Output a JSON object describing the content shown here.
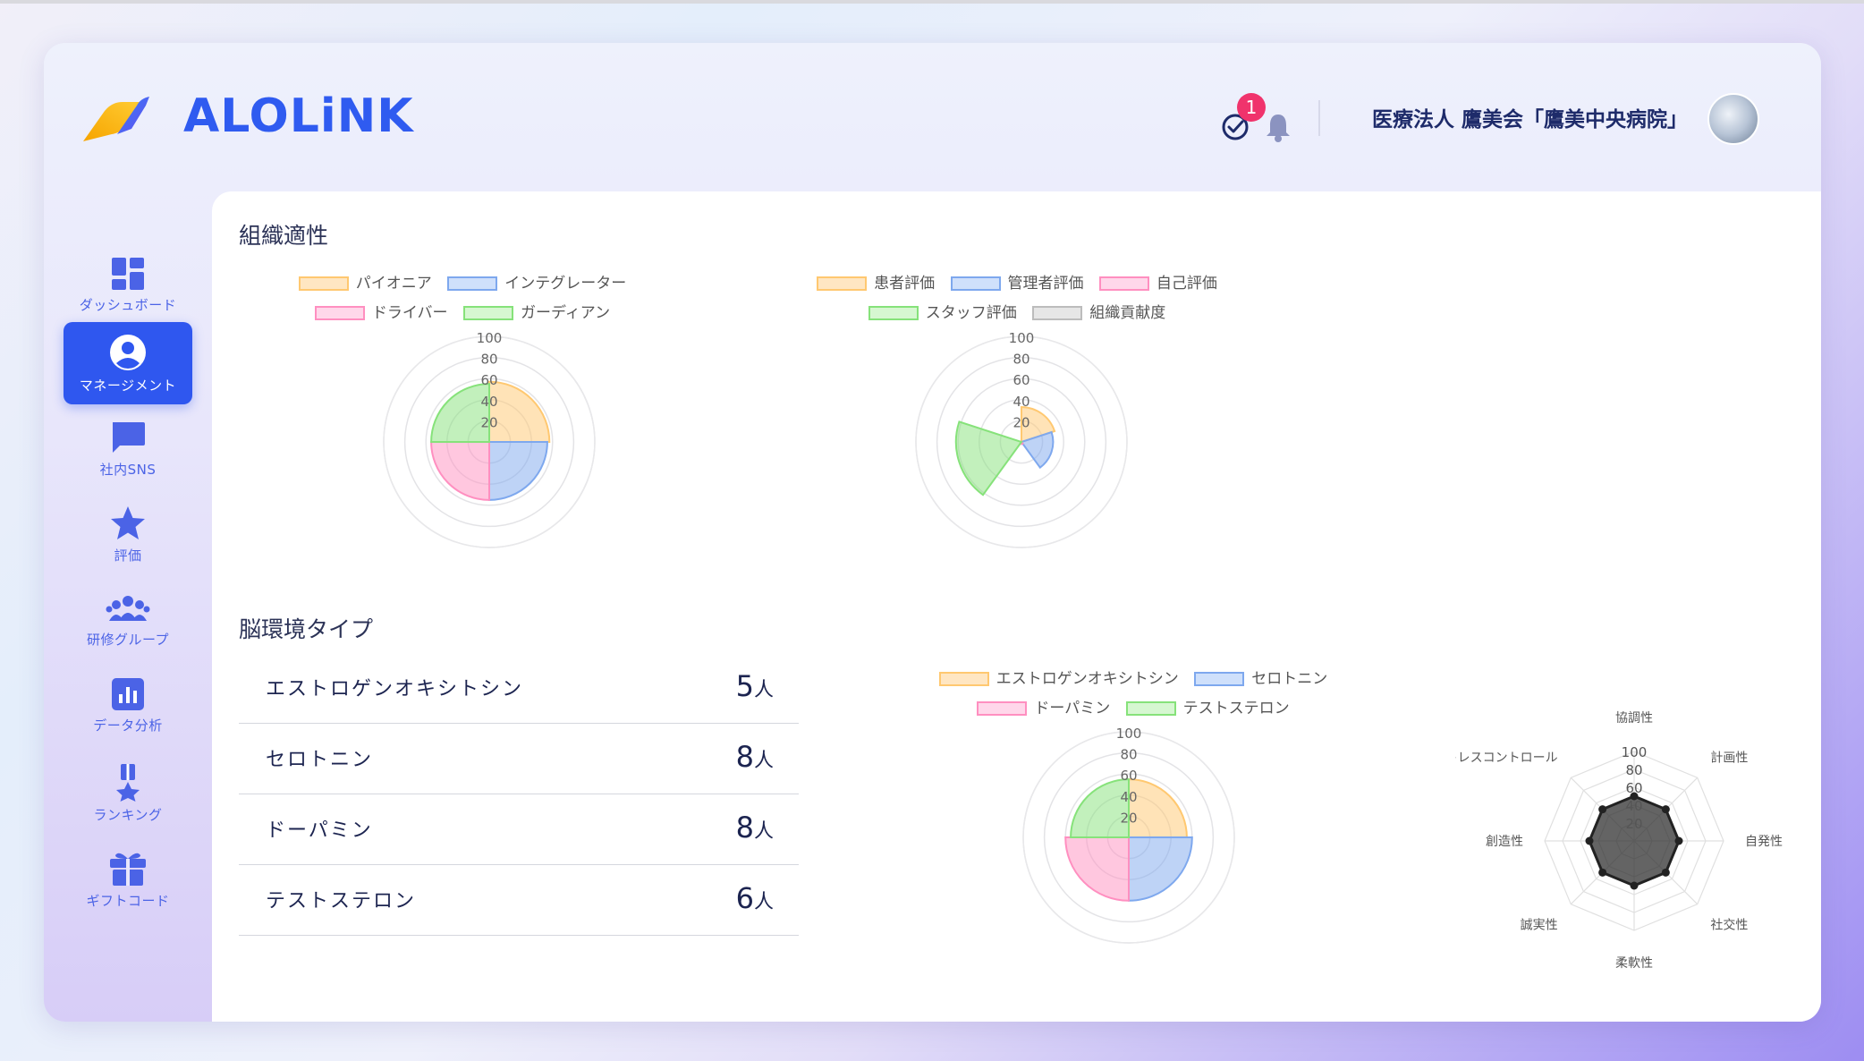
{
  "app": {
    "logo_text": "ALOLiNK",
    "notification_badge": "1",
    "organization": "医療法人 鷹美会「鷹美中央病院」"
  },
  "sidebar": {
    "items": [
      {
        "label": "ダッシュボード",
        "icon": "dashboard-icon",
        "active": false
      },
      {
        "label": "マネージメント",
        "icon": "user-circle-icon",
        "active": true
      },
      {
        "label": "社内SNS",
        "icon": "chat-bubble-icon",
        "active": false
      },
      {
        "label": "評価",
        "icon": "star-icon",
        "active": false
      },
      {
        "label": "研修グループ",
        "icon": "group-icon",
        "active": false
      },
      {
        "label": "データ分析",
        "icon": "bar-chart-icon",
        "active": false
      },
      {
        "label": "ランキング",
        "icon": "medal-icon",
        "active": false
      },
      {
        "label": "ギフトコード",
        "icon": "gift-icon",
        "active": false
      }
    ]
  },
  "sections": {
    "org": {
      "title": "組織適性"
    },
    "brain": {
      "title": "脳環境タイプ"
    }
  },
  "brain_list": [
    {
      "name": "エストロゲンオキシトシン",
      "count": "5",
      "unit": "人"
    },
    {
      "name": "セロトニン",
      "count": "8",
      "unit": "人"
    },
    {
      "name": "ドーパミン",
      "count": "8",
      "unit": "人"
    },
    {
      "name": "テストステロン",
      "count": "6",
      "unit": "人"
    }
  ],
  "colors": {
    "accent": "#2f57ef",
    "orange": "#ffd79a",
    "blue": "#a9c8f7",
    "pink": "#ffbfdc",
    "green": "#b8f0b0",
    "gray": "#d8d8d8"
  },
  "chart_data": [
    {
      "type": "polarArea",
      "legend": [
        {
          "label": "パイオニア",
          "color": "#ffd79a"
        },
        {
          "label": "インテグレーター",
          "color": "#a9c8f7"
        },
        {
          "label": "ドライバー",
          "color": "#ffbfdc"
        },
        {
          "label": "ガーディアン",
          "color": "#b8f0b0"
        }
      ],
      "ticks": [
        "20",
        "40",
        "60",
        "80",
        "100"
      ],
      "values": [
        57,
        55,
        55,
        55
      ],
      "rmax": 100
    },
    {
      "type": "polarArea",
      "legend": [
        {
          "label": "患者評価",
          "color": "#ffd79a"
        },
        {
          "label": "管理者評価",
          "color": "#a9c8f7"
        },
        {
          "label": "自己評価",
          "color": "#ffbfdc"
        },
        {
          "label": "スタッフ評価",
          "color": "#b8f0b0"
        },
        {
          "label": "組織貢献度",
          "color": "#d8d8d8"
        }
      ],
      "ticks": [
        "20",
        "40",
        "60",
        "80",
        "100"
      ],
      "values": [
        33,
        30,
        2,
        62,
        0
      ],
      "rmax": 100
    },
    {
      "type": "polarArea",
      "legend": [
        {
          "label": "エストロゲンオキシトシン",
          "color": "#ffd79a"
        },
        {
          "label": "セロトニン",
          "color": "#a9c8f7"
        },
        {
          "label": "ドーパミン",
          "color": "#ffbfdc"
        },
        {
          "label": "テストステロン",
          "color": "#b8f0b0"
        }
      ],
      "ticks": [
        "20",
        "40",
        "60",
        "80",
        "100"
      ],
      "values": [
        55,
        60,
        60,
        55
      ],
      "rmax": 100
    },
    {
      "type": "radar",
      "axes": [
        "協調性",
        "計画性",
        "自発性",
        "社交性",
        "柔軟性",
        "誠実性",
        "創造性",
        "ストレスコントロール"
      ],
      "values": [
        50,
        50,
        50,
        50,
        50,
        50,
        50,
        50
      ],
      "ticks": [
        "20",
        "40",
        "60",
        "80",
        "100"
      ],
      "rmax": 100
    }
  ]
}
